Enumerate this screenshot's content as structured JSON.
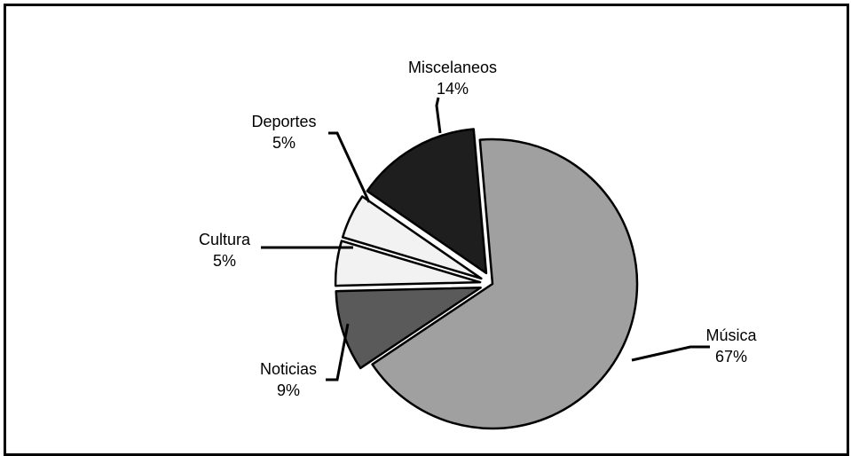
{
  "chart_data": {
    "type": "pie",
    "title": "",
    "slices": [
      {
        "label": "Música",
        "value": 67,
        "pct_label": "67%",
        "color": "#a0a0a0",
        "exploded": false
      },
      {
        "label": "Noticias",
        "value": 9,
        "pct_label": "9%",
        "color": "#5a5a5a",
        "exploded": true
      },
      {
        "label": "Cultura",
        "value": 5,
        "pct_label": "5%",
        "color": "#f2f2f2",
        "exploded": true
      },
      {
        "label": "Deportes",
        "value": 5,
        "pct_label": "5%",
        "color": "#f2f2f2",
        "exploded": true
      },
      {
        "label": "Miscelaneos",
        "value": 14,
        "pct_label": "14%",
        "color": "#1e1e1e",
        "exploded": true
      }
    ],
    "legend": "none",
    "label_style": "outside with leader lines"
  }
}
